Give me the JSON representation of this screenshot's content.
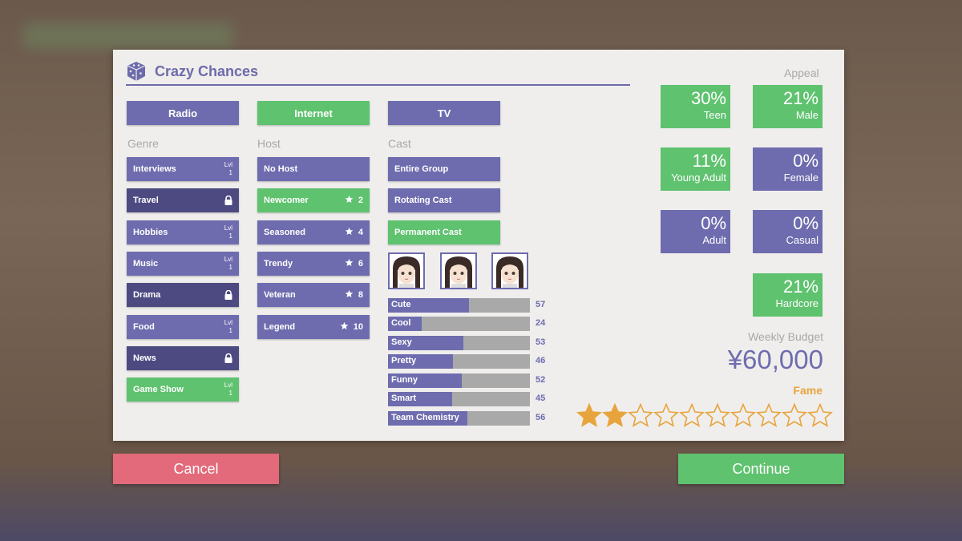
{
  "title": "Crazy Chances",
  "colors": {
    "purple": "#6e6cae",
    "locked": "#4d4a82",
    "green": "#5fc26f",
    "cancel": "#e26a7a",
    "fame": "#e8a43c"
  },
  "categories": [
    {
      "label": "Radio",
      "selected": false
    },
    {
      "label": "Internet",
      "selected": true
    },
    {
      "label": "TV",
      "selected": false
    }
  ],
  "genre": {
    "heading": "Genre",
    "items": [
      {
        "label": "Interviews",
        "state": "lvl",
        "lvl_label": "Lvl",
        "lvl": "1"
      },
      {
        "label": "Travel",
        "state": "locked"
      },
      {
        "label": "Hobbies",
        "state": "lvl",
        "lvl_label": "Lvl",
        "lvl": "1"
      },
      {
        "label": "Music",
        "state": "lvl",
        "lvl_label": "Lvl",
        "lvl": "1"
      },
      {
        "label": "Drama",
        "state": "locked"
      },
      {
        "label": "Food",
        "state": "lvl",
        "lvl_label": "Lvl",
        "lvl": "1"
      },
      {
        "label": "News",
        "state": "locked"
      },
      {
        "label": "Game Show",
        "state": "selected",
        "lvl_label": "Lvl",
        "lvl": "1"
      }
    ]
  },
  "host": {
    "heading": "Host",
    "items": [
      {
        "label": "No Host",
        "stars": ""
      },
      {
        "label": "Newcomer",
        "stars": "2",
        "selected": true
      },
      {
        "label": "Seasoned",
        "stars": "4"
      },
      {
        "label": "Trendy",
        "stars": "6"
      },
      {
        "label": "Veteran",
        "stars": "8"
      },
      {
        "label": "Legend",
        "stars": "10"
      }
    ]
  },
  "cast": {
    "heading": "Cast",
    "items": [
      {
        "label": "Entire Group"
      },
      {
        "label": "Rotating Cast"
      },
      {
        "label": "Permanent Cast",
        "selected": true
      }
    ],
    "portraits": [
      "cast-member-1",
      "cast-member-2",
      "cast-member-3"
    ],
    "stats": [
      {
        "label": "Cute",
        "value": 57
      },
      {
        "label": "Cool",
        "value": 24
      },
      {
        "label": "Sexy",
        "value": 53
      },
      {
        "label": "Pretty",
        "value": 46
      },
      {
        "label": "Funny",
        "value": 52
      },
      {
        "label": "Smart",
        "value": 45
      },
      {
        "label": "Team Chemistry",
        "value": 56
      }
    ]
  },
  "appeal": {
    "heading": "Appeal",
    "items": [
      {
        "pct": "30%",
        "label": "Teen",
        "high": true
      },
      {
        "pct": "21%",
        "label": "Male",
        "high": true
      },
      {
        "pct": "11%",
        "label": "Young Adult",
        "high": true
      },
      {
        "pct": "0%",
        "label": "Female",
        "high": false
      },
      {
        "pct": "0%",
        "label": "Adult",
        "high": false
      },
      {
        "pct": "0%",
        "label": "Casual",
        "high": false
      },
      {
        "pct": "21%",
        "label": "Hardcore",
        "high": true
      }
    ]
  },
  "budget": {
    "label": "Weekly Budget",
    "value": "¥60,000"
  },
  "fame": {
    "label": "Fame",
    "stars": 2,
    "max": 10
  },
  "buttons": {
    "cancel": "Cancel",
    "continue": "Continue"
  }
}
